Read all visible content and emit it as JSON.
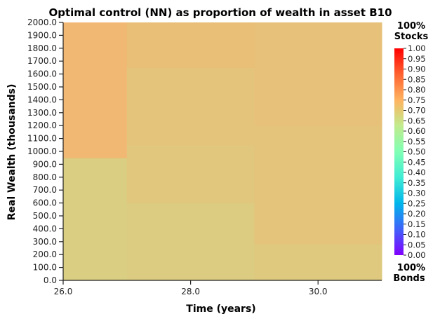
{
  "chart_data": {
    "type": "heatmap",
    "title": "Optimal control (NN) as proportion of wealth in asset B10",
    "xlabel": "Time (years)",
    "ylabel": "Real Wealth (thousands)",
    "x_ticks": [
      "26.0",
      "28.0",
      "30.0"
    ],
    "y_ticks": [
      "0.0",
      "100.0",
      "200.0",
      "300.0",
      "400.0",
      "500.0",
      "600.0",
      "700.0",
      "800.0",
      "900.0",
      "1000.0",
      "1100.0",
      "1200.0",
      "1300.0",
      "1400.0",
      "1500.0",
      "1600.0",
      "1700.0",
      "1800.0",
      "1900.0",
      "2000.0"
    ],
    "xlim": [
      26,
      31
    ],
    "ylim": [
      0,
      2000
    ],
    "colorbar": {
      "ticks": [
        "0.00",
        "0.05",
        "0.10",
        "0.15",
        "0.20",
        "0.25",
        "0.30",
        "0.35",
        "0.40",
        "0.45",
        "0.50",
        "0.55",
        "0.60",
        "0.65",
        "0.70",
        "0.75",
        "0.80",
        "0.85",
        "0.90",
        "0.95",
        "1.00"
      ],
      "range": [
        0,
        1
      ],
      "colormap": "rainbow",
      "top_label": [
        "100%",
        "Stocks"
      ],
      "bottom_label": [
        "100%",
        "Bonds"
      ]
    },
    "columns": [
      {
        "t_start": 26,
        "t_end": 27,
        "bands": [
          {
            "w_from": 0,
            "w_to": 950,
            "value": 0.69
          },
          {
            "w_from": 950,
            "w_to": 2000,
            "value": 0.74
          }
        ]
      },
      {
        "t_start": 27,
        "t_end": 29,
        "bands": [
          {
            "w_from": 0,
            "w_to": 600,
            "value": 0.695
          },
          {
            "w_from": 600,
            "w_to": 1050,
            "value": 0.705
          },
          {
            "w_from": 1050,
            "w_to": 1650,
            "value": 0.715
          },
          {
            "w_from": 1650,
            "w_to": 2000,
            "value": 0.725
          }
        ]
      },
      {
        "t_start": 29,
        "t_end": 31,
        "bands": [
          {
            "w_from": 0,
            "w_to": 280,
            "value": 0.7
          },
          {
            "w_from": 280,
            "w_to": 1200,
            "value": 0.715
          },
          {
            "w_from": 1200,
            "w_to": 2000,
            "value": 0.72
          }
        ]
      }
    ]
  }
}
